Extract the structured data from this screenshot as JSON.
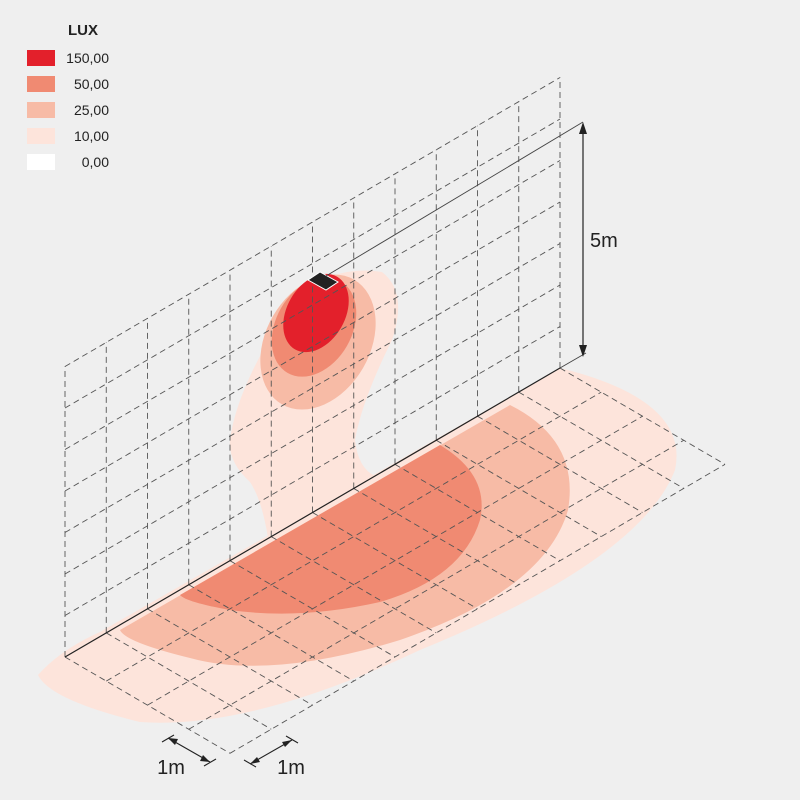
{
  "legend": {
    "title": "LUX",
    "items": [
      {
        "label": "150,00",
        "color": "#e3202b"
      },
      {
        "label": "50,00",
        "color": "#f08a72"
      },
      {
        "label": "25,00",
        "color": "#f7bba6"
      },
      {
        "label": "10,00",
        "color": "#fde4db"
      },
      {
        "label": "0,00",
        "color": "#ffffff"
      }
    ]
  },
  "dimensions": {
    "height": "5m",
    "grid_x": "1m",
    "grid_y": "1m"
  }
}
